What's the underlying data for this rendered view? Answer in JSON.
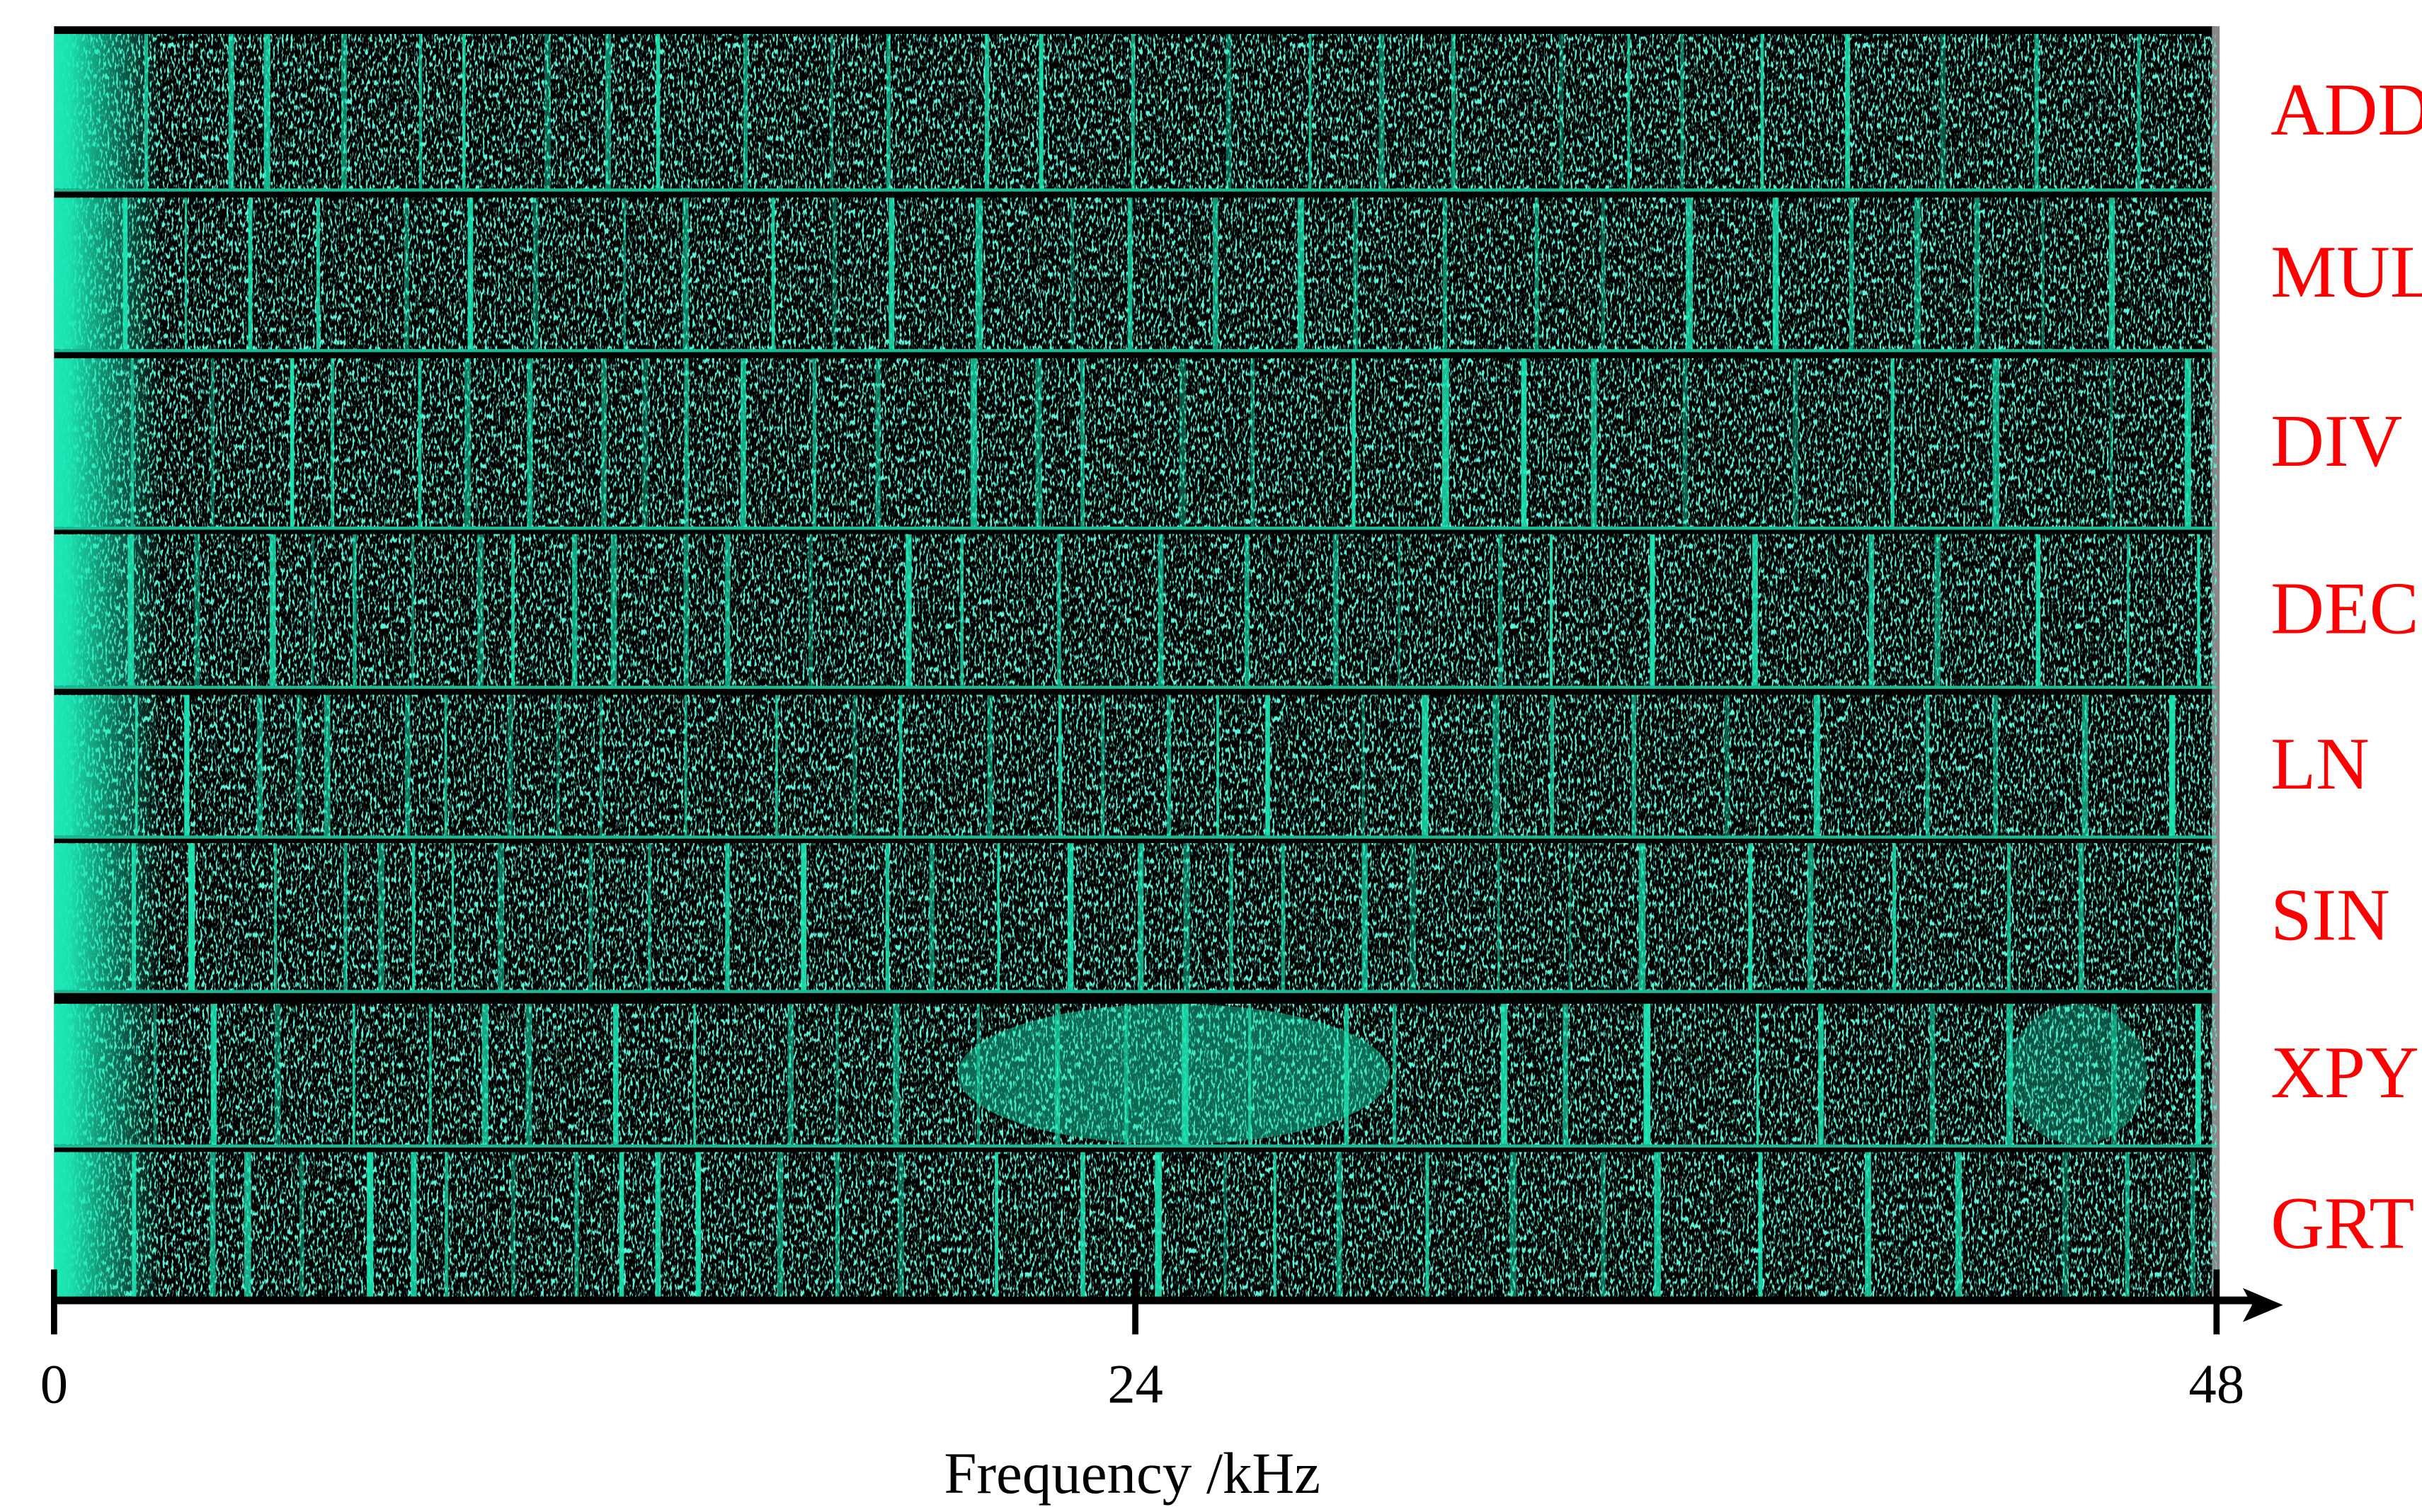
{
  "chart_data": {
    "type": "spectrogram",
    "xlabel": "Frequency /kHz",
    "xlim": [
      0,
      48
    ],
    "xticks": [
      0,
      24,
      48
    ],
    "categories": [
      "ADD",
      "MUL",
      "DIV",
      "DEC",
      "LN",
      "SIN",
      "XPY",
      "GRT"
    ],
    "color": "#1de9b6",
    "label_color": "#ff0000"
  }
}
